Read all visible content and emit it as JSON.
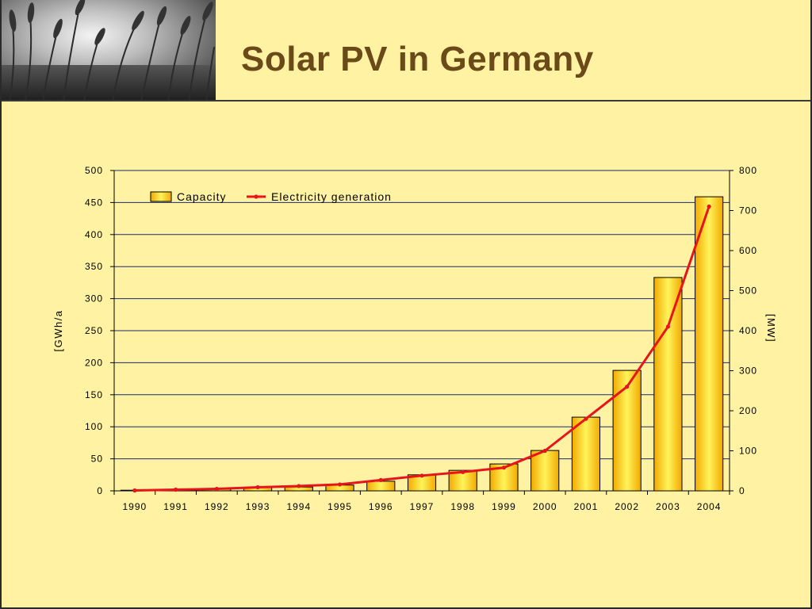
{
  "slide": {
    "title": "Solar PV in Germany"
  },
  "colors": {
    "background": "#FFF3A3",
    "title": "#6B4A19",
    "bar_fill_edge": "#F2A900",
    "bar_fill_center": "#FFF45A",
    "line": "#E8141C",
    "grid": "#1C2A6E"
  },
  "chart_data": {
    "type": "bar",
    "categories": [
      "1990",
      "1991",
      "1992",
      "1993",
      "1994",
      "1995",
      "1996",
      "1997",
      "1998",
      "1999",
      "2000",
      "2001",
      "2002",
      "2003",
      "2004"
    ],
    "series": [
      {
        "name": "Capacity",
        "type": "bar",
        "axis": "left",
        "values": [
          1,
          2,
          3,
          5,
          6,
          9,
          15,
          25,
          32,
          42,
          63,
          115,
          188,
          333,
          459
        ]
      },
      {
        "name": "Electricity generation",
        "type": "line",
        "axis": "right",
        "values": [
          1,
          3,
          5,
          9,
          12,
          16,
          27,
          38,
          47,
          58,
          100,
          180,
          260,
          410,
          710
        ]
      }
    ],
    "ylabel": "[GWh/a",
    "y2label": "[MW]",
    "ylim": [
      0,
      500
    ],
    "y2lim": [
      0,
      800
    ],
    "yticks": [
      "0",
      "50",
      "100",
      "150",
      "200",
      "250",
      "300",
      "350",
      "400",
      "450",
      "500"
    ],
    "y2ticks": [
      "0",
      "100",
      "200",
      "300",
      "400",
      "500",
      "600",
      "700",
      "800"
    ],
    "legend": "top-left",
    "grid": true
  }
}
